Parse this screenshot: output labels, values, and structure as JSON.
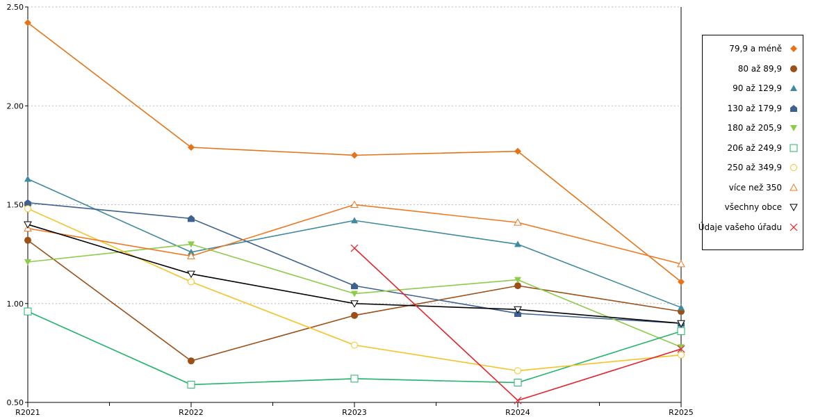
{
  "chart_data": {
    "type": "line",
    "categories": [
      "R2021",
      "R2022",
      "R2023",
      "R2024",
      "R2025"
    ],
    "ylim": [
      0.5,
      2.5
    ],
    "yticks": [
      "0.50",
      "1.00",
      "1.50",
      "2.00",
      "2.50"
    ],
    "grid": "horizontal-dotted",
    "legend_position": "right",
    "series": [
      {
        "name": "79,9 a méně",
        "color": "#e57418",
        "marker": "diamond",
        "values": [
          2.42,
          1.79,
          1.75,
          1.77,
          1.11
        ]
      },
      {
        "name": "80 až 89,9",
        "color": "#9c4f16",
        "marker": "circle",
        "values": [
          1.32,
          0.71,
          0.94,
          1.09,
          0.96
        ]
      },
      {
        "name": "90 až 129,9",
        "color": "#3f8a9e",
        "marker": "triangle-up",
        "values": [
          1.63,
          1.26,
          1.42,
          1.3,
          0.98
        ]
      },
      {
        "name": "130 až 179,9",
        "color": "#3d628f",
        "marker": "pentagon",
        "values": [
          1.51,
          1.43,
          1.09,
          0.95,
          0.9
        ]
      },
      {
        "name": "180 až 205,9",
        "color": "#8ccc4a",
        "marker": "triangle-down",
        "values": [
          1.21,
          1.3,
          1.05,
          1.12,
          0.78
        ]
      },
      {
        "name": "206 až 249,9",
        "color": "#20b46a",
        "marker": "square-open",
        "values": [
          0.96,
          0.59,
          0.62,
          0.6,
          0.86
        ]
      },
      {
        "name": "250 až 349,9",
        "color": "#f5c325",
        "marker": "circle-open",
        "values": [
          1.48,
          1.11,
          0.79,
          0.66,
          0.74
        ]
      },
      {
        "name": "více než 350",
        "color": "#f07820",
        "marker": "triangle-up-open",
        "values": [
          1.38,
          1.24,
          1.5,
          1.41,
          1.2
        ]
      },
      {
        "name": "všechny obce",
        "color": "#000000",
        "marker": "triangle-down-open",
        "values": [
          1.4,
          1.15,
          1.0,
          0.97,
          0.9
        ]
      },
      {
        "name": "Údaje vašeho úřadu",
        "color": "#e8202a",
        "marker": "x",
        "values": [
          null,
          null,
          1.28,
          0.51,
          0.77
        ]
      }
    ]
  }
}
